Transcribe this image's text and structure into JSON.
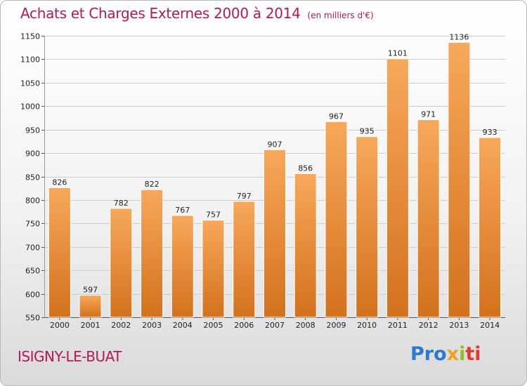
{
  "header": {
    "title": "Achats et Charges Externes 2000 à 2014",
    "unit": "(en milliers d'€)"
  },
  "footer": {
    "city": "ISIGNY-LE-BUAT",
    "logo": {
      "p1": "Pro",
      "p2": "x",
      "p3": "i",
      "p4": "ti"
    }
  },
  "colors": {
    "title": "#b31857",
    "bar_light": "#f7a85a",
    "bar_dark": "#d3711d",
    "grid": "#cccccc"
  },
  "chart_data": {
    "type": "bar",
    "title": "Achats et Charges Externes 2000 à 2014",
    "subtitle": "(en milliers d'€)",
    "xlabel": "",
    "ylabel": "",
    "categories": [
      "2000",
      "2001",
      "2002",
      "2003",
      "2004",
      "2005",
      "2006",
      "2007",
      "2008",
      "2009",
      "2010",
      "2011",
      "2012",
      "2013",
      "2014"
    ],
    "values": [
      826,
      597,
      782,
      822,
      767,
      757,
      797,
      907,
      856,
      967,
      935,
      1101,
      971,
      1136,
      933
    ],
    "value_labels": [
      "826",
      "597",
      "782",
      "822",
      "767",
      "757",
      "797",
      "907",
      "856",
      "967",
      "935",
      "1101",
      "971",
      "1136",
      "933"
    ],
    "ylim": [
      550,
      1150
    ],
    "yticks": [
      550,
      600,
      650,
      700,
      750,
      800,
      850,
      900,
      950,
      1000,
      1050,
      1100,
      1150
    ],
    "grid": true,
    "legend": "none"
  }
}
